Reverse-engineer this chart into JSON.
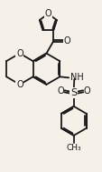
{
  "bg_color": "#f5f0e8",
  "line_color": "#1a1a1a",
  "line_width": 1.3,
  "figsize": [
    1.14,
    1.89
  ],
  "dpi": 100,
  "xlim": [
    0,
    10
  ],
  "ylim": [
    0,
    17
  ]
}
